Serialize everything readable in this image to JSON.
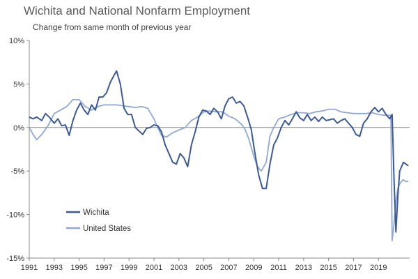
{
  "chart_data": {
    "type": "line",
    "title": "Wichita and National Nonfarm Employment",
    "subtitle": "Change from same month of previous year",
    "xlabel": "",
    "ylabel": "",
    "xlim": [
      1991,
      2021.5
    ],
    "ylim": [
      -15,
      10
    ],
    "y_ticks": [
      "10%",
      "5%",
      "0%",
      "-5%",
      "-10%",
      "-15%"
    ],
    "y_tick_values": [
      10,
      5,
      0,
      -5,
      -10,
      -15
    ],
    "x_ticks": [
      "1991",
      "1993",
      "1995",
      "1997",
      "1999",
      "2001",
      "2003",
      "2005",
      "2007",
      "2009",
      "2011",
      "2013",
      "2015",
      "2017",
      "2019"
    ],
    "grid": false,
    "legend_position": "bottom-left",
    "series": [
      {
        "name": "Wichita",
        "color": "#3b5998",
        "x": [
          1991.0,
          1991.3,
          1991.6,
          1992.0,
          1992.3,
          1992.6,
          1993.0,
          1993.3,
          1993.6,
          1993.9,
          1994.2,
          1994.5,
          1994.8,
          1995.1,
          1995.4,
          1995.7,
          1996.0,
          1996.3,
          1996.6,
          1996.9,
          1997.2,
          1997.5,
          1997.8,
          1998.0,
          1998.3,
          1998.6,
          1998.9,
          1999.2,
          1999.5,
          1999.8,
          2000.1,
          2000.4,
          2000.7,
          2001.0,
          2001.3,
          2001.6,
          2001.9,
          2002.2,
          2002.5,
          2002.8,
          2003.1,
          2003.4,
          2003.7,
          2004.0,
          2004.3,
          2004.6,
          2004.9,
          2005.2,
          2005.5,
          2005.8,
          2006.1,
          2006.4,
          2006.7,
          2007.0,
          2007.3,
          2007.6,
          2007.9,
          2008.2,
          2008.5,
          2008.8,
          2009.1,
          2009.4,
          2009.7,
          2010.0,
          2010.3,
          2010.6,
          2010.9,
          2011.2,
          2011.5,
          2011.8,
          2012.1,
          2012.4,
          2012.7,
          2013.0,
          2013.3,
          2013.6,
          2013.9,
          2014.2,
          2014.5,
          2014.8,
          2015.1,
          2015.4,
          2015.7,
          2016.0,
          2016.3,
          2016.6,
          2016.9,
          2017.2,
          2017.5,
          2017.8,
          2018.1,
          2018.4,
          2018.7,
          2019.0,
          2019.3,
          2019.6,
          2019.9,
          2020.1,
          2020.25,
          2020.4,
          2020.55,
          2020.7,
          2020.85,
          2021.0,
          2021.2,
          2021.4
        ],
        "values": [
          1.2,
          1.0,
          1.2,
          0.8,
          1.6,
          1.2,
          0.5,
          1.0,
          0.2,
          0.3,
          -0.9,
          0.8,
          2.0,
          2.8,
          2.0,
          1.5,
          2.6,
          2.0,
          3.5,
          3.5,
          4.0,
          5.2,
          6.0,
          6.5,
          5.0,
          2.2,
          1.5,
          1.5,
          0.0,
          -0.4,
          -0.8,
          -0.1,
          0.0,
          0.3,
          0.2,
          -0.5,
          -2.0,
          -3.0,
          -4.0,
          -4.2,
          -3.0,
          -3.5,
          -4.5,
          -2.0,
          -0.5,
          1.2,
          2.0,
          1.9,
          1.5,
          2.2,
          1.8,
          1.0,
          2.5,
          3.3,
          3.5,
          2.8,
          3.0,
          2.5,
          1.2,
          -0.2,
          -3.0,
          -5.5,
          -7.0,
          -7.0,
          -4.2,
          -2.0,
          -1.2,
          0.0,
          0.8,
          0.3,
          1.0,
          1.8,
          1.1,
          0.8,
          1.5,
          0.8,
          1.2,
          0.7,
          1.2,
          0.8,
          0.9,
          1.0,
          0.5,
          0.8,
          1.0,
          0.5,
          0.0,
          -0.8,
          -1.0,
          0.5,
          1.0,
          1.8,
          2.3,
          1.8,
          2.2,
          1.5,
          1.0,
          1.5,
          -6.0,
          -12.0,
          -8.0,
          -5.0,
          -4.5,
          -4.0,
          -4.2,
          -4.4
        ]
      },
      {
        "name": "United States",
        "color": "#8fa8d6",
        "x": [
          1991.0,
          1991.3,
          1991.6,
          1992.0,
          1992.5,
          1993.0,
          1993.5,
          1994.0,
          1994.5,
          1995.0,
          1995.5,
          1996.0,
          1996.5,
          1997.0,
          1997.5,
          1998.0,
          1998.5,
          1999.0,
          1999.5,
          2000.0,
          2000.5,
          2001.0,
          2001.3,
          2001.6,
          2002.0,
          2002.5,
          2003.0,
          2003.5,
          2004.0,
          2004.5,
          2005.0,
          2005.5,
          2006.0,
          2006.5,
          2007.0,
          2007.5,
          2008.0,
          2008.3,
          2008.6,
          2009.0,
          2009.3,
          2009.6,
          2010.0,
          2010.3,
          2010.6,
          2011.0,
          2011.5,
          2012.0,
          2012.5,
          2013.0,
          2013.5,
          2014.0,
          2014.5,
          2015.0,
          2015.5,
          2016.0,
          2016.5,
          2017.0,
          2017.5,
          2018.0,
          2018.5,
          2019.0,
          2019.5,
          2020.0,
          2020.1,
          2020.25,
          2020.4,
          2020.55,
          2020.7,
          2020.85,
          2021.0,
          2021.2,
          2021.4
        ],
        "values": [
          0.0,
          -0.8,
          -1.4,
          -0.8,
          0.2,
          1.6,
          2.0,
          2.4,
          3.2,
          3.2,
          2.4,
          2.0,
          2.4,
          2.6,
          2.6,
          2.6,
          2.5,
          2.4,
          2.3,
          2.4,
          2.2,
          1.0,
          0.0,
          -0.9,
          -1.1,
          -0.6,
          -0.3,
          0.0,
          0.8,
          1.2,
          1.8,
          1.9,
          1.8,
          1.8,
          1.3,
          1.0,
          0.4,
          -0.2,
          -1.3,
          -3.3,
          -4.5,
          -5.0,
          -4.0,
          -1.0,
          0.0,
          1.0,
          1.2,
          1.5,
          1.7,
          1.7,
          1.6,
          1.8,
          1.9,
          2.1,
          2.1,
          1.8,
          1.7,
          1.6,
          1.6,
          1.6,
          1.7,
          1.5,
          1.4,
          1.4,
          -13.0,
          -11.0,
          -8.5,
          -7.0,
          -6.5,
          -6.2,
          -6.0,
          -6.2,
          -6.2
        ]
      }
    ]
  }
}
